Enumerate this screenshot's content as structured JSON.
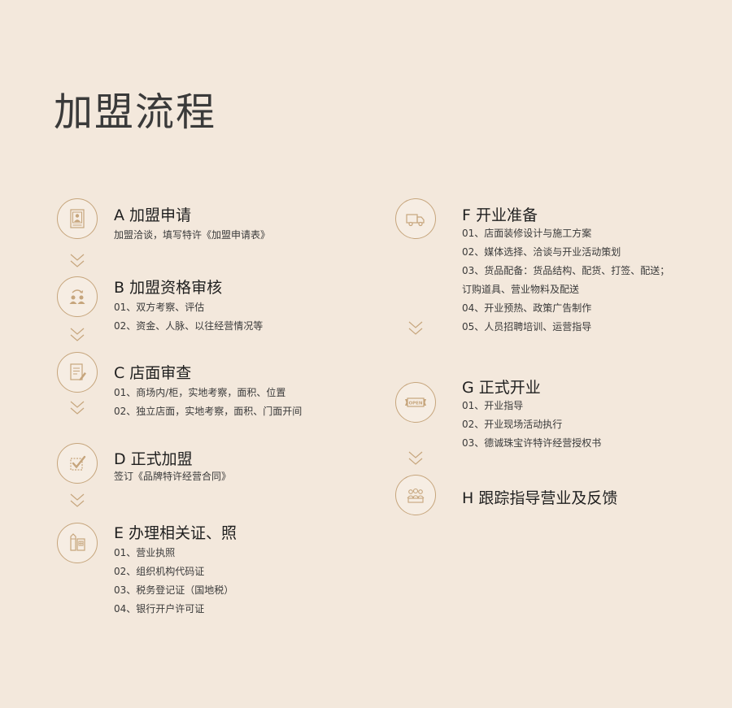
{
  "page_title": "加盟流程",
  "steps": {
    "A": {
      "title": "A 加盟申请",
      "lines": [
        "加盟洽谈，填写特许《加盟申请表》"
      ],
      "icon": "application-form-icon"
    },
    "B": {
      "title": "B 加盟资格审核",
      "lines": [
        "01、双方考察、评估",
        "02、资金、人脉、以往经营情况等"
      ],
      "icon": "people-exchange-icon"
    },
    "C": {
      "title": "C 店面审查",
      "lines": [
        "01、商场内/柜，实地考察，面积、位置",
        "02、独立店面，实地考察，面积、门面开间"
      ],
      "icon": "document-edit-icon"
    },
    "D": {
      "title": "D 正式加盟",
      "lines": [
        "签订《品牌特许经营合同》"
      ],
      "icon": "checkbox-icon"
    },
    "E": {
      "title": "E 办理相关证、照",
      "lines": [
        "01、营业执照",
        "02、组织机构代码证",
        "03、税务登记证（国地税）",
        "04、银行开户许可证"
      ],
      "icon": "pencil-document-icon"
    },
    "F": {
      "title": "F  开业准备",
      "lines": [
        "01、店面装修设计与施工方案",
        "02、媒体选择、洽谈与开业活动策划",
        "03、货品配备：货品结构、配货、打签、配送；",
        "订购道具、营业物料及配送",
        "04、开业预热、政策广告制作",
        "05、人员招聘培训、运营指导"
      ],
      "icon": "delivery-truck-icon"
    },
    "G": {
      "title": "G  正式开业",
      "lines": [
        "01、开业指导",
        "02、开业现场活动执行",
        "03、德诚珠宝许特许经营授权书"
      ],
      "icon": "open-ribbon-icon",
      "icon_text": "OPEN"
    },
    "H": {
      "title": "H  跟踪指导营业及反馈",
      "lines": [],
      "icon": "team-group-icon"
    }
  },
  "colors": {
    "background": "#f3e8dc",
    "accent": "#c6a57c"
  }
}
